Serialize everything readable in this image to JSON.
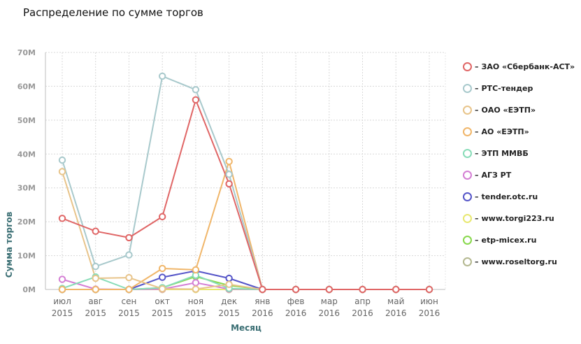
{
  "title": "Распределение по сумме торгов",
  "chart_data": {
    "type": "line",
    "xlabel": "Месяц",
    "ylabel": "Сумма торгов",
    "ylim": [
      0,
      70
    ],
    "yticks": [
      "0M",
      "10M",
      "20M",
      "30M",
      "40M",
      "50M",
      "60M",
      "70M"
    ],
    "grid": true,
    "legend_position": "right",
    "categories": [
      [
        "июл",
        "2015"
      ],
      [
        "авг",
        "2015"
      ],
      [
        "сен",
        "2015"
      ],
      [
        "окт",
        "2015"
      ],
      [
        "ноя",
        "2015"
      ],
      [
        "дек",
        "2015"
      ],
      [
        "янв",
        "2016"
      ],
      [
        "фев",
        "2016"
      ],
      [
        "мар",
        "2016"
      ],
      [
        "апр",
        "2016"
      ],
      [
        "май",
        "2016"
      ],
      [
        "июн",
        "2016"
      ]
    ],
    "series": [
      {
        "name": "ЗАО «Сбербанк-АСТ»",
        "color": "#e06666",
        "values": [
          21,
          17.2,
          15.3,
          21.5,
          56,
          31.2,
          0,
          0,
          0,
          0,
          0,
          0
        ]
      },
      {
        "name": "РТС-тендер",
        "color": "#a8c9cc",
        "values": [
          38.2,
          6.8,
          10.2,
          63,
          59,
          34,
          0,
          0,
          0,
          0,
          0,
          0
        ]
      },
      {
        "name": "ОАО «ЕЭТП»",
        "color": "#e8c48a",
        "values": [
          34.8,
          3.3,
          3.5,
          0.2,
          0.1,
          1.5,
          0,
          0,
          0,
          0,
          0,
          0
        ]
      },
      {
        "name": "АО «ЕЭТП»",
        "color": "#f0b66a",
        "values": [
          0,
          0,
          0,
          6.2,
          5.8,
          37.8,
          0,
          0,
          0,
          0,
          0,
          0
        ]
      },
      {
        "name": "ЭТП ММВБ",
        "color": "#88dcb8",
        "values": [
          0.3,
          3.7,
          0,
          0.5,
          4.2,
          0.3,
          0,
          0,
          0,
          0,
          0,
          0
        ]
      },
      {
        "name": "АГЗ РТ",
        "color": "#d47fd4",
        "values": [
          3,
          0.1,
          0,
          0.1,
          2,
          0.1,
          0,
          0,
          0,
          0,
          0,
          0
        ]
      },
      {
        "name": "tender.otc.ru",
        "color": "#5555c8",
        "values": [
          0,
          0,
          0,
          3.6,
          5.5,
          3.3,
          0,
          0,
          0,
          0,
          0,
          0
        ]
      },
      {
        "name": "www.torgi223.ru",
        "color": "#e8e870",
        "values": [
          0,
          0,
          0,
          0,
          0,
          0,
          0,
          0,
          0,
          0,
          0,
          0
        ]
      },
      {
        "name": "etp-micex.ru",
        "color": "#88d84c",
        "values": [
          0,
          0,
          0,
          0.5,
          3.8,
          1.2,
          0,
          0,
          0,
          0,
          0,
          0
        ]
      },
      {
        "name": "www.roseltorg.ru",
        "color": "#b4b890",
        "values": [
          0,
          0,
          0,
          0,
          0,
          0,
          0,
          0,
          0,
          0,
          0,
          0
        ]
      }
    ]
  }
}
